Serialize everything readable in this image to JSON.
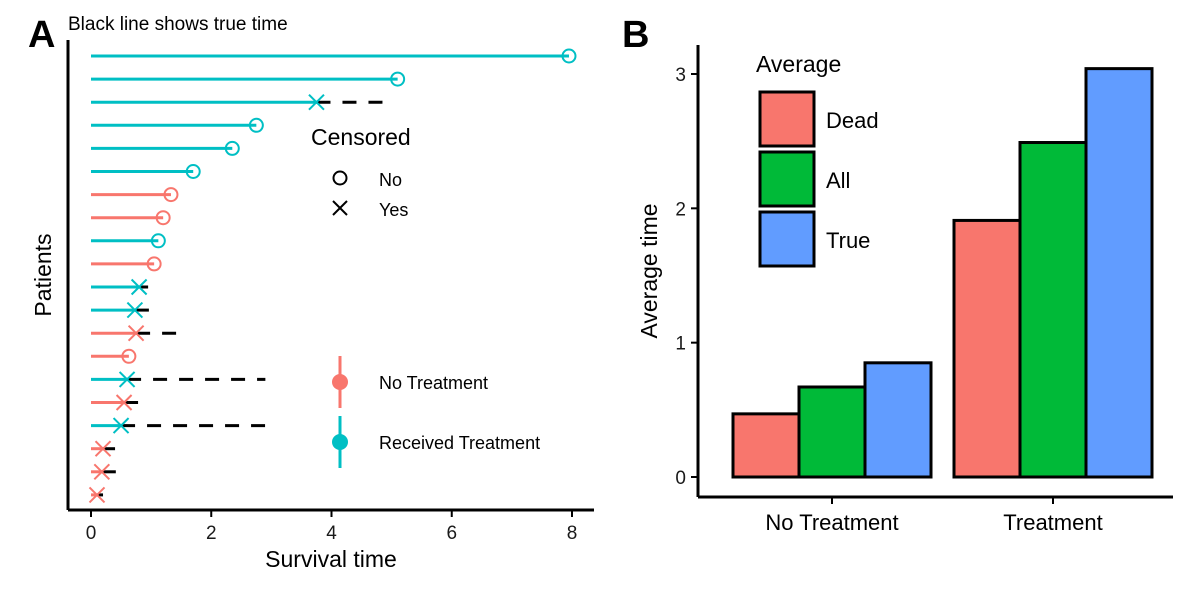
{
  "panel_a": {
    "letter": "A",
    "subtitle": "Black line shows true time"
  },
  "panel_b": {
    "letter": "B"
  },
  "chart_data": [
    {
      "type": "scatter",
      "panel": "A",
      "subtitle": "Black line shows true time",
      "xlabel": "Survival time",
      "ylabel": "Patients",
      "xlim": [
        0,
        8
      ],
      "x_ticks": [
        0,
        2,
        4,
        6,
        8
      ],
      "legend_censored": {
        "title": "Censored",
        "items": [
          {
            "label": "No",
            "shape": "circle"
          },
          {
            "label": "Yes",
            "shape": "cross"
          }
        ]
      },
      "legend_group": {
        "items": [
          {
            "label": "No Treatment",
            "color": "#F8766D"
          },
          {
            "label": "Received Treatment",
            "color": "#00BFC4"
          }
        ]
      },
      "patients": [
        {
          "time": 7.95,
          "true_time": null,
          "treated": true,
          "censored": false
        },
        {
          "time": 5.1,
          "true_time": null,
          "treated": true,
          "censored": false
        },
        {
          "time": 3.75,
          "true_time": 4.85,
          "treated": true,
          "censored": true
        },
        {
          "time": 2.75,
          "true_time": null,
          "treated": true,
          "censored": false
        },
        {
          "time": 2.35,
          "true_time": null,
          "treated": true,
          "censored": false
        },
        {
          "time": 1.7,
          "true_time": null,
          "treated": true,
          "censored": false
        },
        {
          "time": 1.33,
          "true_time": null,
          "treated": false,
          "censored": false
        },
        {
          "time": 1.2,
          "true_time": null,
          "treated": false,
          "censored": false
        },
        {
          "time": 1.12,
          "true_time": null,
          "treated": true,
          "censored": false
        },
        {
          "time": 1.05,
          "true_time": null,
          "treated": false,
          "censored": false
        },
        {
          "time": 0.8,
          "true_time": 0.95,
          "treated": true,
          "censored": true
        },
        {
          "time": 0.73,
          "true_time": 0.97,
          "treated": true,
          "censored": true
        },
        {
          "time": 0.75,
          "true_time": 1.45,
          "treated": false,
          "censored": true
        },
        {
          "time": 0.63,
          "true_time": null,
          "treated": false,
          "censored": false
        },
        {
          "time": 0.6,
          "true_time": 2.9,
          "treated": true,
          "censored": true
        },
        {
          "time": 0.55,
          "true_time": 0.8,
          "treated": false,
          "censored": true
        },
        {
          "time": 0.5,
          "true_time": 2.9,
          "treated": true,
          "censored": true
        },
        {
          "time": 0.2,
          "true_time": 0.4,
          "treated": false,
          "censored": true
        },
        {
          "time": 0.18,
          "true_time": 0.45,
          "treated": false,
          "censored": true
        },
        {
          "time": 0.1,
          "true_time": 0.2,
          "treated": false,
          "censored": true
        }
      ]
    },
    {
      "type": "bar",
      "panel": "B",
      "xlabel": "",
      "ylabel": "Average time",
      "ylim": [
        0,
        3.1
      ],
      "y_ticks": [
        0,
        1,
        2,
        3
      ],
      "categories": [
        "No Treatment",
        "Treatment"
      ],
      "legend_title": "Average",
      "series": [
        {
          "name": "Dead",
          "color": "#F8766D",
          "values": [
            0.47,
            1.91
          ]
        },
        {
          "name": "All",
          "color": "#00BA38",
          "values": [
            0.67,
            2.49
          ]
        },
        {
          "name": "True",
          "color": "#619CFF",
          "values": [
            0.85,
            3.04
          ]
        }
      ]
    }
  ]
}
